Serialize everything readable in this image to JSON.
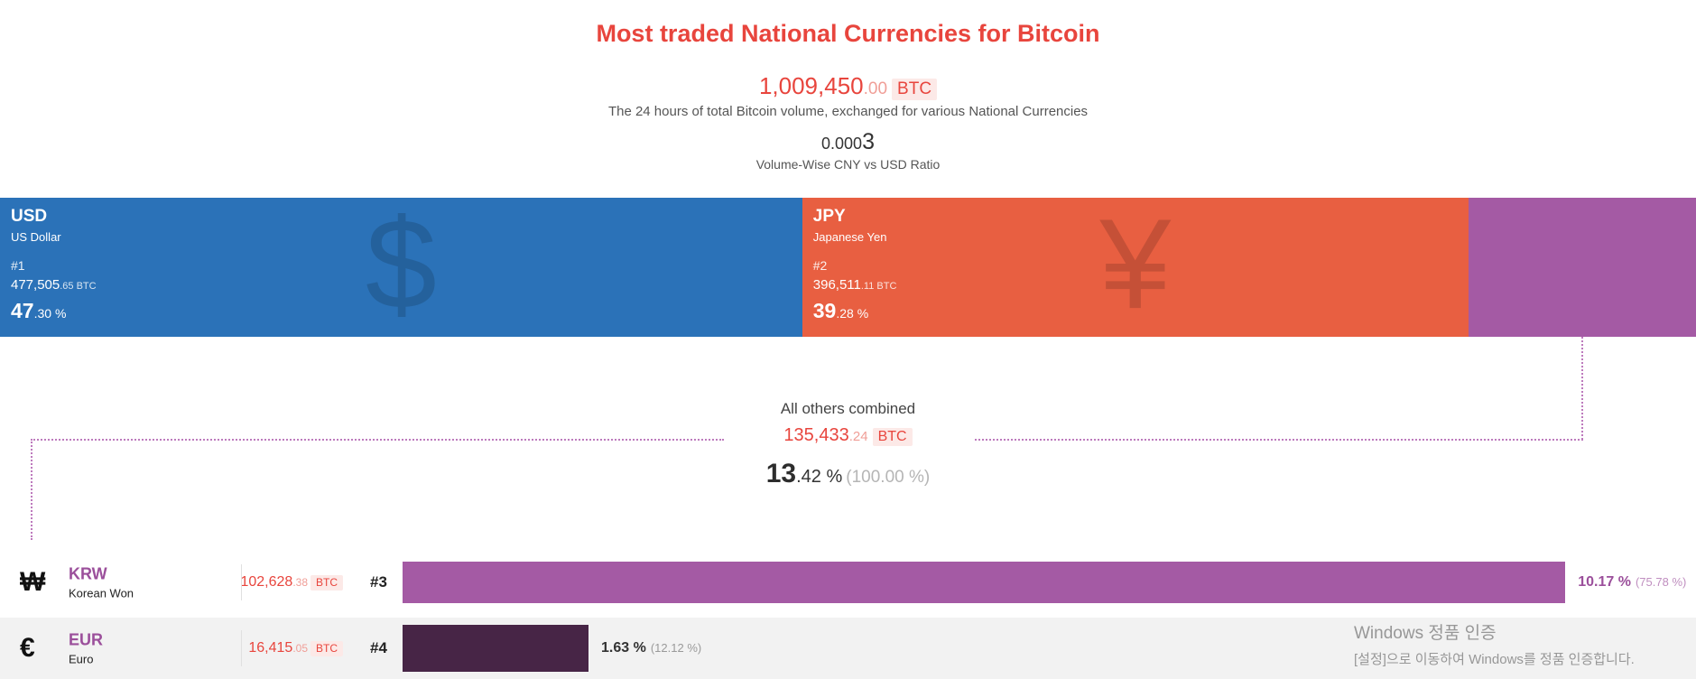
{
  "header": {
    "title": "Most traded National Currencies for Bitcoin",
    "total": {
      "int": "1,009,450",
      "dec": ".00",
      "unit": "BTC"
    },
    "subtitle": "The 24 hours of total Bitcoin volume, exchanged for various National Currencies",
    "ratio": {
      "lead": "0.000",
      "big": "3"
    },
    "ratio_label": "Volume-Wise CNY vs USD Ratio"
  },
  "chart_data": {
    "type": "bar",
    "title": "Most traded National Currencies for Bitcoin",
    "total_btc_24h": 1009450.0,
    "total_unit": "BTC",
    "cny_usd_ratio": 0.0003,
    "segments": [
      {
        "code": "USD",
        "name": "US Dollar",
        "rank": "#1",
        "symbol": "$",
        "btc": 477505.65,
        "btc_int": "477,505",
        "btc_dec": ".65",
        "btc_unit": " BTC",
        "percent": 47.3,
        "pct_int": "47",
        "pct_rest": ".30 %",
        "color": "#2b72b8"
      },
      {
        "code": "JPY",
        "name": "Japanese Yen",
        "rank": "#2",
        "symbol": "¥",
        "btc": 396511.11,
        "btc_int": "396,511",
        "btc_dec": ".11",
        "btc_unit": " BTC",
        "percent": 39.28,
        "pct_int": "39",
        "pct_rest": ".28 %",
        "color": "#e85f41"
      },
      {
        "code": "OTHERS",
        "name": "All others combined",
        "btc": 135433.24,
        "percent": 13.42,
        "color": "#a45aa4"
      }
    ],
    "others": {
      "label": "All others combined",
      "btc": 135433.24,
      "btc_int": "135,433",
      "btc_dec": ".24",
      "btc_unit": "BTC",
      "pct_int": "13",
      "pct_rest": ".42 %",
      "pct_relative": "(100.00 %)"
    },
    "list": [
      {
        "symbol": "₩",
        "code": "KRW",
        "name": "Korean Won",
        "rank": "#3",
        "btc": 102628.38,
        "btc_int": "102,628",
        "btc_dec": ".38",
        "btc_unit": "BTC",
        "percent": "10.17 %",
        "relative": "(75.78 %)",
        "bar_percent": 75.78,
        "color": "#a45aa4"
      },
      {
        "symbol": "€",
        "code": "EUR",
        "name": "Euro",
        "rank": "#4",
        "btc": 16415.05,
        "btc_int": "16,415",
        "btc_dec": ".05",
        "btc_unit": "BTC",
        "percent": "1.63 %",
        "relative": "(12.12 %)",
        "bar_percent": 12.12,
        "color": "#472546"
      }
    ]
  },
  "os_watermark": {
    "line1": "Windows 정품 인증",
    "line2": "[설정]으로 이동하여 Windows를 정품 인증합니다."
  }
}
